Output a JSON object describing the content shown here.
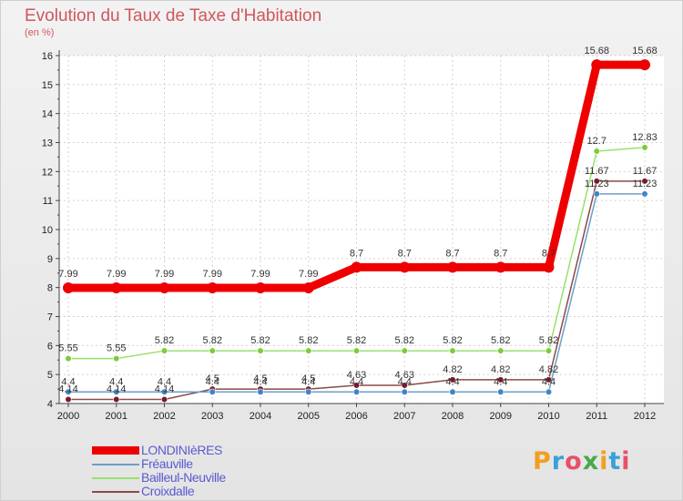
{
  "title": "Evolution du Taux de Taxe d'Habitation",
  "subtitle": "(en %)",
  "logo": {
    "text": "Proxiti",
    "colors": [
      "#f0a020",
      "#3aa0d8",
      "#e8506a",
      "#4aa84a",
      "#f0a020",
      "#3aa0d8",
      "#e8506a"
    ]
  },
  "chart_data": {
    "type": "line",
    "title": "Evolution du Taux de Taxe d'Habitation",
    "ylabel": "(en %)",
    "xlabel": "",
    "x": [
      "2000",
      "2001",
      "2002",
      "2003",
      "2004",
      "2005",
      "2006",
      "2007",
      "2008",
      "2009",
      "2010",
      "2011",
      "2012"
    ],
    "ylim": [
      4,
      16
    ],
    "yticks": [
      4,
      5,
      6,
      7,
      8,
      9,
      10,
      11,
      12,
      13,
      14,
      15,
      16
    ],
    "grid": true,
    "legend_position": "bottom-left",
    "series": [
      {
        "name": "LONDINIèRES",
        "color": "#ee0000",
        "width": 9,
        "values": [
          7.99,
          7.99,
          7.99,
          7.99,
          7.99,
          7.99,
          8.7,
          8.7,
          8.7,
          8.7,
          8.7,
          15.68,
          15.68
        ],
        "labels": [
          "7.99",
          "7.99",
          "7.99",
          "7.99",
          "7.99",
          "7.99",
          "8.7",
          "8.7",
          "8.7",
          "8.7",
          "8.7",
          "15.68",
          "15.68"
        ]
      },
      {
        "name": "Fréauville",
        "color": "#6a9fc9",
        "dot": "#3d86c6",
        "width": 1.5,
        "values": [
          4.4,
          4.4,
          4.4,
          4.4,
          4.4,
          4.4,
          4.4,
          4.4,
          4.4,
          4.4,
          4.4,
          11.23,
          11.23
        ],
        "labels": [
          "4.4",
          "4.4",
          "4.4",
          "4.4",
          "4.4",
          "4.4",
          "4.4",
          "4.4",
          "4.4",
          "4.4",
          "4.4",
          "11.23",
          "11.23"
        ]
      },
      {
        "name": "Bailleul-Neuville",
        "color": "#9be06a",
        "dot": "#7ccc3a",
        "width": 1.5,
        "values": [
          5.55,
          5.55,
          5.82,
          5.82,
          5.82,
          5.82,
          5.82,
          5.82,
          5.82,
          5.82,
          5.82,
          12.7,
          12.83
        ],
        "labels": [
          "5.55",
          "5.55",
          "5.82",
          "5.82",
          "5.82",
          "5.82",
          "5.82",
          "5.82",
          "5.82",
          "5.82",
          "5.82",
          "12.7",
          "12.83"
        ]
      },
      {
        "name": "Croixdalle",
        "color": "#8a4a4a",
        "dot": "#7a1a2a",
        "width": 1.5,
        "values": [
          4.14,
          4.14,
          4.14,
          4.5,
          4.5,
          4.5,
          4.63,
          4.63,
          4.82,
          4.82,
          4.82,
          11.67,
          11.67
        ],
        "labels": [
          "4.14",
          "4.14",
          "4.14",
          "4.5",
          "4.5",
          "4.5",
          "4.63",
          "4.63",
          "4.82",
          "4.82",
          "4.82",
          "11.67",
          "11.67"
        ]
      }
    ]
  }
}
